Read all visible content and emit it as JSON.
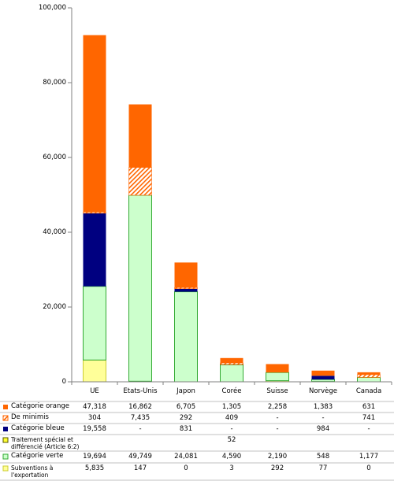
{
  "chart_data": {
    "type": "bar",
    "stacked": true,
    "categories": [
      "UE",
      "Etats-Unis",
      "Japon",
      "Corée",
      "Suisse",
      "Norvège",
      "Canada"
    ],
    "ylim": [
      0,
      100000
    ],
    "yticks": [
      0,
      20000,
      40000,
      60000,
      80000,
      100000
    ],
    "ytick_labels": [
      "0",
      "20,000",
      "40,000",
      "60,000",
      "80,000",
      "100,000"
    ],
    "grid": false,
    "legend": "table-below",
    "series": [
      {
        "name": "Catégorie orange",
        "color": "#ff6600",
        "outline": null,
        "hatched": false,
        "values": [
          47318,
          16862,
          6705,
          1305,
          2258,
          1383,
          631
        ],
        "labels": [
          "47,318",
          "16,862",
          "6,705",
          "1,305",
          "2,258",
          "1,383",
          "631"
        ]
      },
      {
        "name": "De minimis",
        "color": "#ff6600",
        "outline": "#ff6600",
        "hatched": true,
        "values": [
          304,
          7435,
          292,
          409,
          null,
          null,
          741
        ],
        "labels": [
          "304",
          "7,435",
          "292",
          "409",
          "-",
          "-",
          "741"
        ]
      },
      {
        "name": "Catégorie bleue",
        "color": "#000080",
        "outline": null,
        "hatched": false,
        "values": [
          19558,
          null,
          831,
          null,
          null,
          984,
          null
        ],
        "labels": [
          "19,558",
          "-",
          "831",
          "-",
          "-",
          "984",
          "-"
        ]
      },
      {
        "name": "Traitement spécial et différencié (Article 6:2)",
        "color": "#ffff33",
        "outline": "#555500",
        "hatched": false,
        "values": [
          null,
          null,
          null,
          52,
          null,
          null,
          null
        ],
        "labels": [
          "",
          "",
          "",
          "52",
          "",
          "",
          ""
        ]
      },
      {
        "name": "Catégorie verte",
        "color": "#ccffcc",
        "outline": "#33aa33",
        "hatched": false,
        "values": [
          19694,
          49749,
          24081,
          4590,
          2190,
          548,
          1177
        ],
        "labels": [
          "19,694",
          "49,749",
          "24,081",
          "4,590",
          "2,190",
          "548",
          "1,177"
        ]
      },
      {
        "name": "Subventions à l'exportation",
        "color": "#ffff99",
        "outline": "#cccc33",
        "hatched": false,
        "values": [
          5835,
          147,
          0,
          3,
          292,
          77,
          0
        ],
        "labels": [
          "5,835",
          "147",
          "0",
          "3",
          "292",
          "77",
          "0"
        ]
      }
    ]
  }
}
